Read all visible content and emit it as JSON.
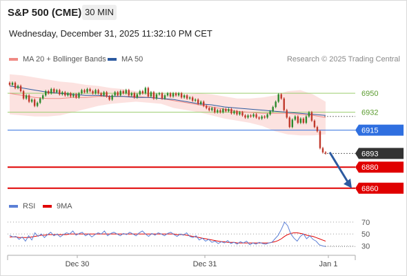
{
  "header": {
    "title": "S&P 500 (CME)",
    "timeframe": "30 MIN",
    "datetime": "Wednesday, December 31, 2025 11:32:10 PM CET",
    "credit": "Research © 2025 Trading Central"
  },
  "legend": {
    "ma20": {
      "label": "MA 20 + Bollinger Bands",
      "color": "#f08a84"
    },
    "ma50": {
      "label": "MA 50",
      "color": "#2c5aa0"
    },
    "rsi": {
      "label": "RSI",
      "color": "#5b7fd6"
    },
    "ma9": {
      "label": "9MA",
      "color": "#e00000"
    }
  },
  "chart_data": [
    {
      "type": "candlestick",
      "x_labels": [
        "Dec 30",
        "Dec 31",
        "Jan 1"
      ],
      "ylim": [
        6852,
        6973
      ],
      "levels": [
        {
          "value": 6950,
          "label": "6950",
          "color": "#9acd6e",
          "style": "resistance",
          "label_style": "text"
        },
        {
          "value": 6932,
          "label": "6932",
          "color": "#9acd6e",
          "style": "resistance",
          "label_style": "text"
        },
        {
          "value": 6915,
          "label": "6915",
          "color": "#2f6fe0",
          "style": "pivot",
          "label_style": "box"
        },
        {
          "value": 6893,
          "label": "6893",
          "color": "#333333",
          "style": "last",
          "label_style": "box"
        },
        {
          "value": 6880,
          "label": "6880",
          "color": "#e00000",
          "style": "support",
          "label_style": "box"
        },
        {
          "value": 6860,
          "label": "6860",
          "color": "#e00000",
          "style": "support",
          "label_style": "box"
        }
      ],
      "bollinger_upper": [
        6968,
        6967,
        6965,
        6963,
        6961,
        6960,
        6958,
        6957,
        6955,
        6954,
        6952,
        6950,
        6949,
        6949,
        6949,
        6950,
        6949,
        6947,
        6945,
        6945,
        6946,
        6948,
        6952,
        6953,
        6949,
        6942
      ],
      "bollinger_lower": [
        6930,
        6929,
        6928,
        6928,
        6929,
        6932,
        6935,
        6938,
        6940,
        6941,
        6942,
        6941,
        6940,
        6936,
        6934,
        6932,
        6929,
        6926,
        6924,
        6922,
        6919,
        6914,
        6911,
        6910,
        6910,
        6911
      ],
      "ma20": [
        6950,
        6948,
        6946,
        6945,
        6945,
        6946,
        6946,
        6947,
        6947,
        6947,
        6947,
        6946,
        6945,
        6943,
        6941,
        6939,
        6937,
        6935,
        6933,
        6932,
        6931,
        6931,
        6931,
        6930,
        6929,
        6927
      ],
      "ma50": [
        6957,
        6955,
        6953,
        6951,
        6950,
        6949,
        6948,
        6948,
        6947,
        6947,
        6946,
        6946,
        6945,
        6944,
        6942,
        6940,
        6939,
        6937,
        6936,
        6935,
        6934,
        6933,
        6932,
        6931,
        6930,
        6929
      ],
      "candles": [
        {
          "o": 6960,
          "c": 6958
        },
        {
          "o": 6958,
          "c": 6960
        },
        {
          "o": 6960,
          "c": 6955
        },
        {
          "o": 6955,
          "c": 6957
        },
        {
          "o": 6957,
          "c": 6952
        },
        {
          "o": 6952,
          "c": 6945
        },
        {
          "o": 6945,
          "c": 6948
        },
        {
          "o": 6948,
          "c": 6942
        },
        {
          "o": 6942,
          "c": 6944
        },
        {
          "o": 6944,
          "c": 6938
        },
        {
          "o": 6938,
          "c": 6941
        },
        {
          "o": 6941,
          "c": 6945
        },
        {
          "o": 6945,
          "c": 6948
        },
        {
          "o": 6948,
          "c": 6952
        },
        {
          "o": 6952,
          "c": 6950
        },
        {
          "o": 6950,
          "c": 6954
        },
        {
          "o": 6954,
          "c": 6951
        },
        {
          "o": 6951,
          "c": 6953
        },
        {
          "o": 6953,
          "c": 6949
        },
        {
          "o": 6949,
          "c": 6951
        },
        {
          "o": 6951,
          "c": 6948
        },
        {
          "o": 6948,
          "c": 6950
        },
        {
          "o": 6950,
          "c": 6947
        },
        {
          "o": 6947,
          "c": 6949
        },
        {
          "o": 6949,
          "c": 6946
        },
        {
          "o": 6946,
          "c": 6950
        },
        {
          "o": 6950,
          "c": 6953
        },
        {
          "o": 6953,
          "c": 6951
        },
        {
          "o": 6951,
          "c": 6954
        },
        {
          "o": 6954,
          "c": 6952
        },
        {
          "o": 6952,
          "c": 6950
        },
        {
          "o": 6950,
          "c": 6953
        },
        {
          "o": 6953,
          "c": 6950
        },
        {
          "o": 6950,
          "c": 6948
        },
        {
          "o": 6948,
          "c": 6951
        },
        {
          "o": 6951,
          "c": 6947
        },
        {
          "o": 6947,
          "c": 6944
        },
        {
          "o": 6944,
          "c": 6948
        },
        {
          "o": 6948,
          "c": 6951
        },
        {
          "o": 6951,
          "c": 6948
        },
        {
          "o": 6948,
          "c": 6952
        },
        {
          "o": 6952,
          "c": 6950
        },
        {
          "o": 6950,
          "c": 6953
        },
        {
          "o": 6953,
          "c": 6948
        },
        {
          "o": 6948,
          "c": 6950
        },
        {
          "o": 6950,
          "c": 6946
        },
        {
          "o": 6946,
          "c": 6949
        },
        {
          "o": 6949,
          "c": 6952
        },
        {
          "o": 6952,
          "c": 6950
        },
        {
          "o": 6950,
          "c": 6955
        },
        {
          "o": 6955,
          "c": 6947
        },
        {
          "o": 6947,
          "c": 6951
        },
        {
          "o": 6951,
          "c": 6945
        },
        {
          "o": 6945,
          "c": 6949
        },
        {
          "o": 6949,
          "c": 6950
        },
        {
          "o": 6950,
          "c": 6945
        },
        {
          "o": 6945,
          "c": 6948
        },
        {
          "o": 6948,
          "c": 6950
        },
        {
          "o": 6950,
          "c": 6947
        },
        {
          "o": 6947,
          "c": 6950
        },
        {
          "o": 6950,
          "c": 6948
        },
        {
          "o": 6948,
          "c": 6950
        },
        {
          "o": 6950,
          "c": 6946
        },
        {
          "o": 6946,
          "c": 6948
        },
        {
          "o": 6948,
          "c": 6945
        },
        {
          "o": 6945,
          "c": 6946
        },
        {
          "o": 6946,
          "c": 6943
        },
        {
          "o": 6943,
          "c": 6944
        },
        {
          "o": 6944,
          "c": 6940
        },
        {
          "o": 6940,
          "c": 6942
        },
        {
          "o": 6942,
          "c": 6938
        },
        {
          "o": 6938,
          "c": 6936
        },
        {
          "o": 6936,
          "c": 6934
        },
        {
          "o": 6934,
          "c": 6936
        },
        {
          "o": 6936,
          "c": 6932
        },
        {
          "o": 6932,
          "c": 6934
        },
        {
          "o": 6934,
          "c": 6932
        },
        {
          "o": 6932,
          "c": 6935
        },
        {
          "o": 6935,
          "c": 6933
        },
        {
          "o": 6933,
          "c": 6935
        },
        {
          "o": 6935,
          "c": 6931
        },
        {
          "o": 6931,
          "c": 6933
        },
        {
          "o": 6933,
          "c": 6930
        },
        {
          "o": 6930,
          "c": 6932
        },
        {
          "o": 6932,
          "c": 6929
        },
        {
          "o": 6929,
          "c": 6927
        },
        {
          "o": 6927,
          "c": 6929
        },
        {
          "o": 6929,
          "c": 6928
        },
        {
          "o": 6928,
          "c": 6930
        },
        {
          "o": 6930,
          "c": 6927
        },
        {
          "o": 6927,
          "c": 6926
        },
        {
          "o": 6926,
          "c": 6928
        },
        {
          "o": 6928,
          "c": 6927
        },
        {
          "o": 6927,
          "c": 6930
        },
        {
          "o": 6930,
          "c": 6933
        },
        {
          "o": 6933,
          "c": 6937
        },
        {
          "o": 6937,
          "c": 6942
        },
        {
          "o": 6942,
          "c": 6949
        },
        {
          "o": 6949,
          "c": 6945
        },
        {
          "o": 6945,
          "c": 6934
        },
        {
          "o": 6934,
          "c": 6927
        },
        {
          "o": 6927,
          "c": 6918
        },
        {
          "o": 6918,
          "c": 6925
        },
        {
          "o": 6925,
          "c": 6928
        },
        {
          "o": 6928,
          "c": 6922
        },
        {
          "o": 6922,
          "c": 6926
        },
        {
          "o": 6926,
          "c": 6922
        },
        {
          "o": 6922,
          "c": 6928
        },
        {
          "o": 6928,
          "c": 6932
        },
        {
          "o": 6932,
          "c": 6924
        },
        {
          "o": 6924,
          "c": 6918
        },
        {
          "o": 6918,
          "c": 6914
        },
        {
          "o": 6914,
          "c": 6898
        },
        {
          "o": 6898,
          "c": 6894
        },
        {
          "o": 6894,
          "c": 6893
        }
      ],
      "forecast_arrow": {
        "from": 6894,
        "to": 6860,
        "color": "#2c5aa0"
      }
    },
    {
      "type": "line",
      "name": "RSI",
      "levels": [
        70,
        50,
        30
      ],
      "ylim": [
        20,
        78
      ],
      "rsi": [
        48,
        45,
        46,
        41,
        45,
        38,
        47,
        40,
        52,
        46,
        50,
        44,
        49,
        53,
        47,
        50,
        45,
        49,
        52,
        50,
        55,
        48,
        51,
        53,
        47,
        50,
        45,
        49,
        52,
        50,
        55,
        47,
        51,
        53,
        50,
        47,
        51,
        49,
        53,
        50,
        47,
        52,
        55,
        50,
        46,
        51,
        48,
        52,
        50,
        47,
        51,
        53,
        49,
        46,
        50,
        48,
        52,
        46,
        44,
        47,
        40,
        43,
        38,
        41,
        36,
        38,
        34,
        37,
        35,
        39,
        34,
        36,
        33,
        37,
        35,
        38,
        32,
        35,
        33,
        36,
        34,
        33,
        35,
        36,
        42,
        48,
        58,
        70,
        64,
        50,
        43,
        38,
        46,
        50,
        42,
        47,
        41,
        38,
        32,
        30,
        29
      ],
      "ma9": [
        45,
        45,
        45,
        44,
        44,
        44,
        44,
        45,
        46,
        47,
        48,
        48,
        49,
        49,
        49,
        49,
        49,
        49,
        49,
        50,
        50,
        50,
        50,
        50,
        50,
        50,
        50,
        50,
        50,
        50,
        50,
        50,
        50,
        50,
        50,
        50,
        50,
        50,
        50,
        50,
        50,
        50,
        50,
        50,
        50,
        50,
        50,
        50,
        50,
        50,
        50,
        50,
        50,
        49,
        49,
        49,
        48,
        47,
        46,
        45,
        44,
        43,
        42,
        41,
        40,
        39,
        38,
        37,
        37,
        36,
        36,
        36,
        35,
        35,
        35,
        35,
        35,
        35,
        35,
        35,
        35,
        35,
        35,
        36,
        37,
        39,
        42,
        46,
        49,
        51,
        52,
        52,
        51,
        50,
        48,
        47,
        46,
        44,
        42,
        40,
        38
      ]
    }
  ]
}
